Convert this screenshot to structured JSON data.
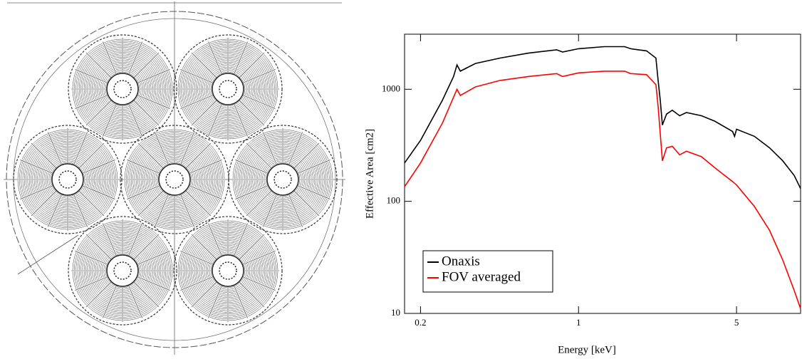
{
  "chart_data": {
    "type": "line",
    "x_label": "Energy [keV]",
    "y_label": "Effective Area [cm2]",
    "log_x": true,
    "log_y": true,
    "legend": "lower left",
    "xlim": [
      0.17,
      9.6
    ],
    "ylim": [
      10,
      3100
    ],
    "xticks": [
      0.2,
      1,
      5
    ],
    "yticks": [
      10,
      100,
      1000
    ],
    "x": [
      0.17,
      0.2,
      0.25,
      0.28,
      0.29,
      0.3,
      0.35,
      0.45,
      0.6,
      0.8,
      0.85,
      1.0,
      1.3,
      1.6,
      1.7,
      2.0,
      2.2,
      2.25,
      2.3,
      2.35,
      2.45,
      2.6,
      2.8,
      3.0,
      3.5,
      4.0,
      4.8,
      4.9,
      5.0,
      6,
      7,
      8,
      9,
      9.6
    ],
    "series": [
      {
        "name": "Onaxis",
        "color": "#000000",
        "values": [
          220,
          350,
          800,
          1300,
          1650,
          1450,
          1700,
          1900,
          2100,
          2250,
          2150,
          2300,
          2400,
          2400,
          2300,
          2200,
          1900,
          1200,
          800,
          480,
          600,
          650,
          580,
          620,
          580,
          520,
          420,
          380,
          440,
          380,
          300,
          230,
          170,
          130
        ]
      },
      {
        "name": "FOV averaged",
        "color": "#ff0000",
        "values": [
          135,
          220,
          500,
          850,
          1000,
          880,
          1050,
          1200,
          1300,
          1380,
          1300,
          1400,
          1450,
          1450,
          1380,
          1350,
          1100,
          700,
          400,
          230,
          300,
          310,
          260,
          280,
          250,
          200,
          150,
          145,
          140,
          90,
          55,
          30,
          16,
          11
        ]
      }
    ]
  }
}
